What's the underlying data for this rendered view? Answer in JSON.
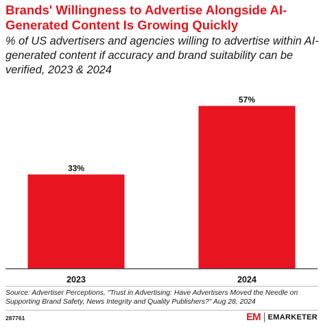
{
  "header": {
    "title": "Brands' Willingness to Advertise Alongside AI-Generated Content Is Growing Quickly",
    "subtitle": "% of US advertisers and agencies willing to advertise within AI-generated content if accuracy and brand suitability can be verified, 2023 & 2024"
  },
  "chart_data": {
    "type": "bar",
    "categories": [
      "2023",
      "2024"
    ],
    "values": [
      33,
      57
    ],
    "value_labels": [
      "33%",
      "57%"
    ],
    "ylim": [
      0,
      60
    ],
    "grid": false,
    "bar_color": "#e8141f"
  },
  "footer": {
    "source": "Source: Advertiser Perceptions, \"Trust in Advertising: Have Advertisers Moved the Needle on Supporting Brand Safety, News Integrity and Quality Publishers?\" Aug 28, 2024",
    "chart_id": "287761",
    "brand_mark": "EM",
    "brand_name": "EMARKETER"
  },
  "colors": {
    "accent": "#e5161d",
    "bar": "#e8141f"
  }
}
